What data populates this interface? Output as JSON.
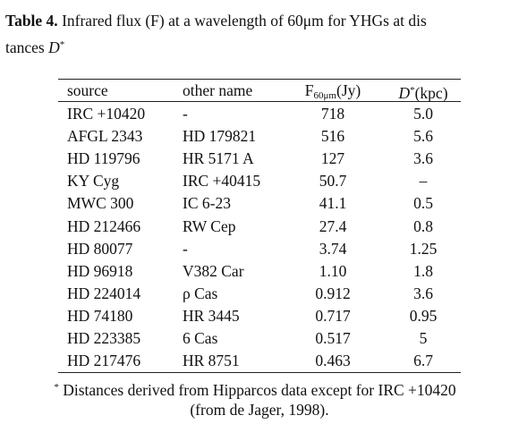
{
  "caption": {
    "label": "Table 4.",
    "line1": "Infrared flux (F) at a wavelength of 60μm for YHGs at dis",
    "line2": "tances",
    "symbol": "D",
    "mark": "*"
  },
  "table": {
    "header": [
      {
        "text": "source"
      },
      {
        "text": "other name"
      },
      {
        "text": "F",
        "sub": "60μm",
        "unit": "(Jy)"
      },
      {
        "text": "D",
        "sup": "*",
        "unit": "(kpc)"
      }
    ],
    "rows": [
      [
        "IRC +10420",
        "-",
        "718",
        "5.0"
      ],
      [
        "AFGL 2343",
        "HD 179821",
        "516",
        "5.6"
      ],
      [
        "HD 119796",
        "HR 5171 A",
        "127",
        "3.6"
      ],
      [
        "KY Cyg",
        "IRC +40415",
        "50.7",
        "–"
      ],
      [
        "MWC 300",
        "IC 6-23",
        "41.1",
        "0.5"
      ],
      [
        "HD 212466",
        "RW Cep",
        "27.4",
        "0.8"
      ],
      [
        "HD 80077",
        "-",
        "3.74",
        "1.25"
      ],
      [
        "HD 96918",
        "V382 Car",
        "1.10",
        "1.8"
      ],
      [
        "HD 224014",
        "ρ Cas",
        "0.912",
        "3.6"
      ],
      [
        "HD 74180",
        "HR 3445",
        "0.717",
        "0.95"
      ],
      [
        "HD 223385",
        "6 Cas",
        "0.517",
        "5"
      ],
      [
        "HD 217476",
        "HR 8751",
        "0.463",
        "6.7"
      ]
    ]
  },
  "footnote": {
    "mark": "*",
    "line1": "Distances derived from Hipparcos data except for IRC +10420",
    "line2": "(from de Jager, 1998)."
  }
}
